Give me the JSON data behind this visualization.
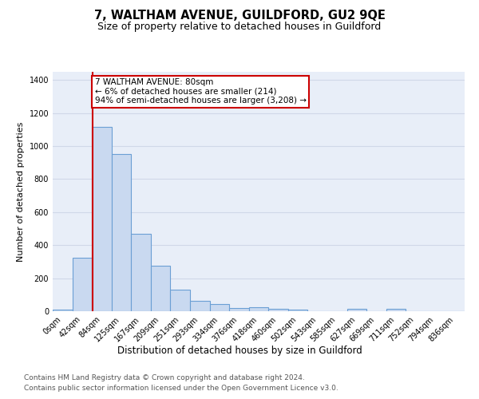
{
  "title": "7, WALTHAM AVENUE, GUILDFORD, GU2 9QE",
  "subtitle": "Size of property relative to detached houses in Guildford",
  "xlabel": "Distribution of detached houses by size in Guildford",
  "ylabel": "Number of detached properties",
  "footnote1": "Contains HM Land Registry data © Crown copyright and database right 2024.",
  "footnote2": "Contains public sector information licensed under the Open Government Licence v3.0.",
  "bar_labels": [
    "0sqm",
    "42sqm",
    "84sqm",
    "125sqm",
    "167sqm",
    "209sqm",
    "251sqm",
    "293sqm",
    "334sqm",
    "376sqm",
    "418sqm",
    "460sqm",
    "502sqm",
    "543sqm",
    "585sqm",
    "627sqm",
    "669sqm",
    "711sqm",
    "752sqm",
    "794sqm",
    "836sqm"
  ],
  "bar_values": [
    10,
    325,
    1115,
    950,
    470,
    275,
    130,
    65,
    45,
    20,
    25,
    15,
    8,
    0,
    0,
    15,
    0,
    15,
    0,
    0,
    0
  ],
  "bar_color": "#c9d9f0",
  "bar_edgecolor": "#6b9fd4",
  "grid_color": "#d0d8e8",
  "background_color": "#e8eef8",
  "vline_x": 1.52,
  "vline_color": "#cc0000",
  "annotation_text": "7 WALTHAM AVENUE: 80sqm\n← 6% of detached houses are smaller (214)\n94% of semi-detached houses are larger (3,208) →",
  "annotation_box_color": "#cc0000",
  "ylim": [
    0,
    1450
  ],
  "title_fontsize": 10.5,
  "subtitle_fontsize": 9,
  "xlabel_fontsize": 8.5,
  "ylabel_fontsize": 8,
  "tick_fontsize": 7,
  "footnote_fontsize": 6.5,
  "ann_fontsize": 7.5
}
